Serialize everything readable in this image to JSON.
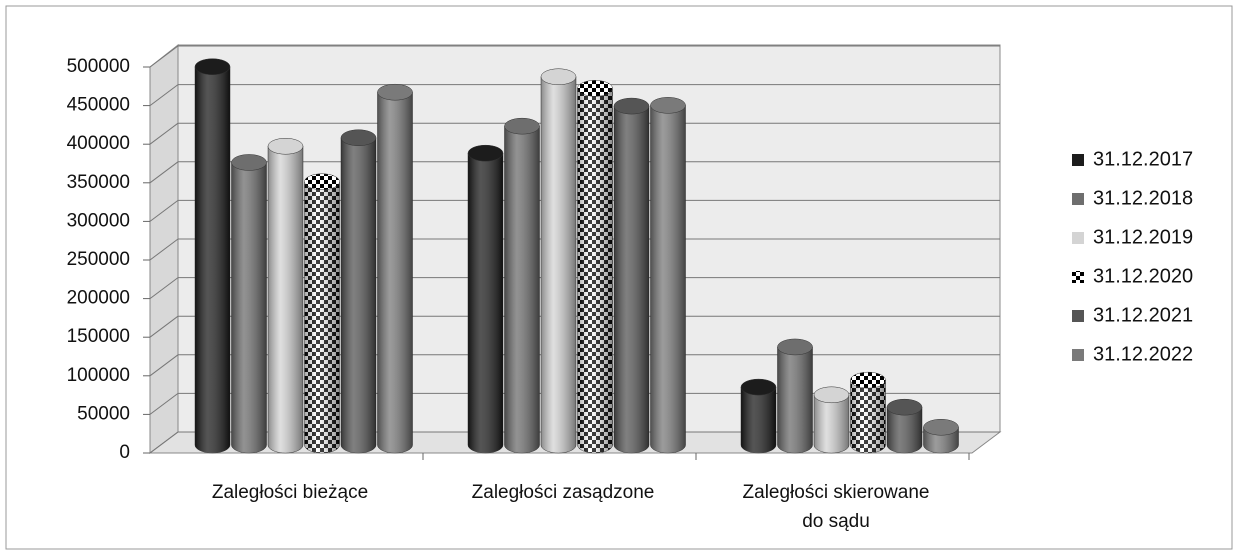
{
  "chart_data": {
    "type": "bar3d",
    "categories": [
      "Zaległości bieżące",
      "Zaległości zasądzone",
      "Zaległości skierowane do sądu"
    ],
    "series": [
      {
        "name": "31.12.2017",
        "color": "#1c1c1c",
        "values": [
          490000,
          378000,
          75000
        ]
      },
      {
        "name": "31.12.2018",
        "color": "#6e6e6e",
        "values": [
          366000,
          413000,
          127000
        ]
      },
      {
        "name": "31.12.2019",
        "color": "#d4d4d4",
        "values": [
          387000,
          477000,
          65000
        ]
      },
      {
        "name": "31.12.2020",
        "color": "#000000",
        "pattern": "checkerboard",
        "values": [
          341000,
          462000,
          84000
        ]
      },
      {
        "name": "31.12.2021",
        "color": "#555555",
        "values": [
          398000,
          439000,
          49000
        ]
      },
      {
        "name": "31.12.2022",
        "color": "#7a7a7a",
        "values": [
          457000,
          440000,
          23000
        ]
      }
    ],
    "ylim": [
      0,
      500000
    ],
    "yticks": [
      0,
      50000,
      100000,
      150000,
      200000,
      250000,
      300000,
      350000,
      400000,
      450000,
      500000
    ],
    "grid": true,
    "legend": "right"
  }
}
